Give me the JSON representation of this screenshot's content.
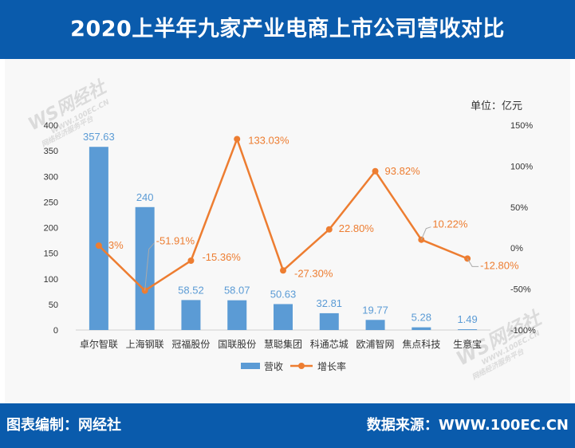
{
  "title": "2020上半年九家产业电商上市公司营收对比",
  "unit_label": "单位：亿元",
  "footer": {
    "left": "图表编制：网经社",
    "right": "数据来源：WWW.100EC.CN"
  },
  "watermark": {
    "mark": "WS网经社",
    "url": "WWW.100EC.CN",
    "tagline": "网络经济服务平台"
  },
  "colors": {
    "header_bg": "#0a5bac",
    "bar": "#5b9bd5",
    "line": "#ed7d31",
    "bar_label": "#5b9bd5",
    "line_label": "#ed7d31"
  },
  "chart_data": {
    "type": "bar",
    "categories": [
      "卓尔智联",
      "上海钢联",
      "冠福股份",
      "国联股份",
      "慧聪集团",
      "科通芯城",
      "欧浦智网",
      "焦点科技",
      "生意宝"
    ],
    "series": [
      {
        "name": "营收",
        "type": "bar",
        "axis": "left",
        "values": [
          357.63,
          240,
          58.52,
          58.07,
          50.63,
          32.81,
          19.77,
          5.28,
          1.49
        ],
        "labels": [
          "357.63",
          "240",
          "58.52",
          "58.07",
          "50.63",
          "32.81",
          "19.77",
          "5.28",
          "1.49"
        ]
      },
      {
        "name": "增长率",
        "type": "line",
        "axis": "right",
        "values": [
          3,
          -51.91,
          -15.36,
          133.03,
          -27.3,
          22.8,
          93.82,
          10.22,
          -12.8
        ],
        "labels": [
          "3%",
          "-51.91%",
          "-15.36%",
          "133.03%",
          "-27.30%",
          "22.80%",
          "93.82%",
          "10.22%",
          "-12.80%"
        ]
      }
    ],
    "y_left": {
      "min": 0,
      "max": 400,
      "ticks": [
        "0",
        "50",
        "100",
        "150",
        "200",
        "250",
        "300",
        "350",
        "400"
      ]
    },
    "y_right": {
      "min": -100,
      "max": 150,
      "ticks": [
        "-100%",
        "-50%",
        "0%",
        "50%",
        "100%",
        "150%"
      ]
    },
    "grid": false,
    "legend_position": "bottom"
  }
}
